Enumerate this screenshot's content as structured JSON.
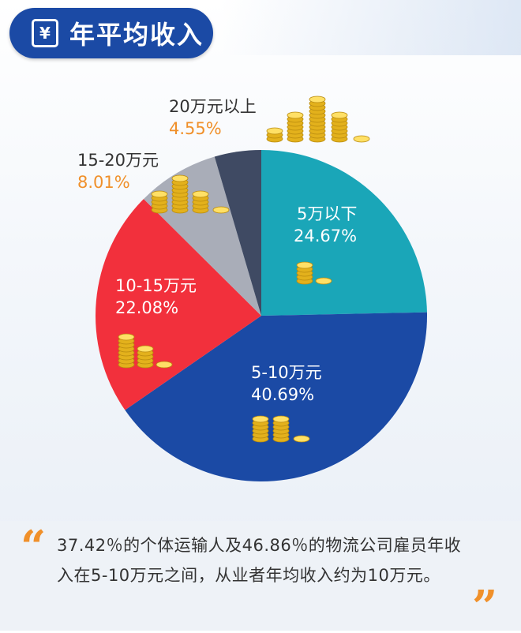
{
  "header": {
    "title": "年平均收入",
    "icon_symbol": "¥",
    "icon": "yen-icon",
    "color": "#1b4aa5"
  },
  "chart_data": {
    "type": "pie",
    "slices": [
      {
        "name": "5万以下",
        "value_label": "24.67%",
        "value": 24.67,
        "color": "#1aa6b8"
      },
      {
        "name": "5-10万元",
        "value_label": "40.69%",
        "value": 40.69,
        "color": "#1b4aa5"
      },
      {
        "name": "10-15万元",
        "value_label": "22.08%",
        "value": 22.08,
        "color": "#f2303c"
      },
      {
        "name": "15-20万元",
        "value_label": "8.01%",
        "value": 8.01,
        "color": "#a9adb8"
      },
      {
        "name": "20万元以上",
        "value_label": "4.55%",
        "value": 4.55,
        "color": "#3f4a63"
      }
    ]
  },
  "note": {
    "open_quote": "“",
    "close_quote": "”",
    "text": "37.42％的个体运输人及46.86％的物流公司雇员年收入在5-10万元之间，从业者年均收入约为10万元。"
  }
}
